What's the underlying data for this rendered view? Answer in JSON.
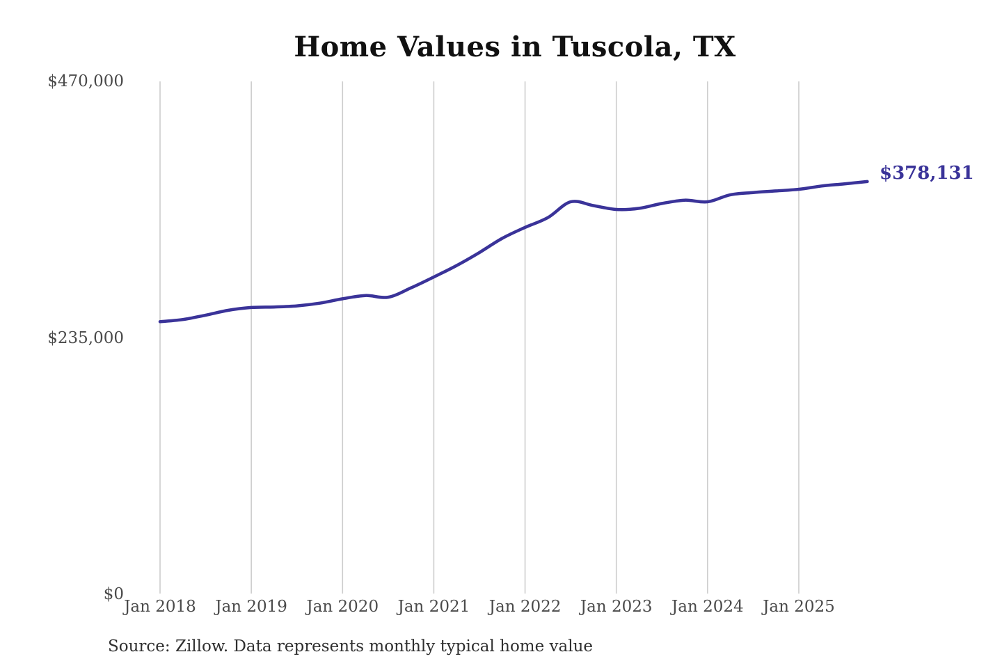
{
  "title": "Home Values in Tuscola, TX",
  "source_note": "Source: Zillow. Data represents monthly typical home value",
  "end_label": "$378,131",
  "colors": {
    "line": "#3a3399",
    "grid": "#cccccc",
    "tick_text": "#4a4a4a",
    "title_text": "#111111",
    "source_text": "#2f2f2f",
    "background": "#ffffff"
  },
  "chart_data": {
    "type": "line",
    "title": "Home Values in Tuscola, TX",
    "series_name": "Monthly typical home value",
    "xlabel": "",
    "ylabel": "",
    "ylim": [
      0,
      470000
    ],
    "grid": "vertical-only",
    "legend": "none",
    "final_value": 378131,
    "final_value_label": "$378,131",
    "y_ticks": [
      {
        "value": 0,
        "label": "$0"
      },
      {
        "value": 235000,
        "label": "$235,000"
      },
      {
        "value": 470000,
        "label": "$470,000"
      }
    ],
    "x_ticks": [
      {
        "t": 0,
        "label": "Jan 2018"
      },
      {
        "t": 12,
        "label": "Jan 2019"
      },
      {
        "t": 24,
        "label": "Jan 2020"
      },
      {
        "t": 36,
        "label": "Jan 2021"
      },
      {
        "t": 48,
        "label": "Jan 2022"
      },
      {
        "t": 60,
        "label": "Jan 2023"
      },
      {
        "t": 72,
        "label": "Jan 2024"
      },
      {
        "t": 84,
        "label": "Jan 2025"
      }
    ],
    "points": [
      {
        "t": 0,
        "date": "Jan 2018",
        "value": 249500
      },
      {
        "t": 3,
        "date": "Apr 2018",
        "value": 251500
      },
      {
        "t": 6,
        "date": "Jul 2018",
        "value": 255500
      },
      {
        "t": 9,
        "date": "Oct 2018",
        "value": 260000
      },
      {
        "t": 12,
        "date": "Jan 2019",
        "value": 262500
      },
      {
        "t": 15,
        "date": "Apr 2019",
        "value": 263000
      },
      {
        "t": 18,
        "date": "Jul 2019",
        "value": 264000
      },
      {
        "t": 21,
        "date": "Oct 2019",
        "value": 266500
      },
      {
        "t": 24,
        "date": "Jan 2020",
        "value": 270500
      },
      {
        "t": 27,
        "date": "Apr 2020",
        "value": 273500
      },
      {
        "t": 30,
        "date": "Jul 2020",
        "value": 272000
      },
      {
        "t": 33,
        "date": "Oct 2020",
        "value": 280500
      },
      {
        "t": 36,
        "date": "Jan 2021",
        "value": 290500
      },
      {
        "t": 39,
        "date": "Apr 2021",
        "value": 301000
      },
      {
        "t": 42,
        "date": "Jul 2021",
        "value": 313000
      },
      {
        "t": 45,
        "date": "Oct 2021",
        "value": 326000
      },
      {
        "t": 48,
        "date": "Jan 2022",
        "value": 336000
      },
      {
        "t": 51,
        "date": "Apr 2022",
        "value": 345000
      },
      {
        "t": 54,
        "date": "Jul 2022",
        "value": 359500
      },
      {
        "t": 57,
        "date": "Oct 2022",
        "value": 356000
      },
      {
        "t": 60,
        "date": "Jan 2023",
        "value": 352500
      },
      {
        "t": 63,
        "date": "Apr 2023",
        "value": 353500
      },
      {
        "t": 66,
        "date": "Jul 2023",
        "value": 358000
      },
      {
        "t": 69,
        "date": "Oct 2023",
        "value": 361000
      },
      {
        "t": 72,
        "date": "Jan 2024",
        "value": 359500
      },
      {
        "t": 75,
        "date": "Apr 2024",
        "value": 366000
      },
      {
        "t": 78,
        "date": "Jul 2024",
        "value": 368000
      },
      {
        "t": 81,
        "date": "Oct 2024",
        "value": 369500
      },
      {
        "t": 84,
        "date": "Jan 2025",
        "value": 371000
      },
      {
        "t": 87,
        "date": "Apr 2025",
        "value": 374000
      },
      {
        "t": 90,
        "date": "Jul 2025",
        "value": 376000
      },
      {
        "t": 93,
        "date": "Oct 2025",
        "value": 378131
      }
    ]
  }
}
